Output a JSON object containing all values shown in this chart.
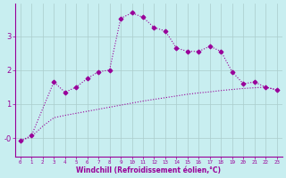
{
  "xlabel": "Windchill (Refroidissement éolien,°C)",
  "bg_color": "#c8eef0",
  "line_color": "#990099",
  "grid_color": "#aacccc",
  "x_ticks": [
    0,
    1,
    2,
    3,
    4,
    5,
    6,
    7,
    8,
    9,
    10,
    11,
    12,
    13,
    14,
    15,
    16,
    17,
    18,
    19,
    20,
    21,
    22,
    23
  ],
  "y_ticks": [
    0,
    1,
    2,
    3
  ],
  "y_tick_labels": [
    "-0",
    "1",
    "2",
    "3"
  ],
  "xlim": [
    -0.5,
    23.5
  ],
  "ylim": [
    -0.55,
    3.95
  ],
  "series1_x": [
    0,
    1,
    3,
    4,
    5,
    6,
    7,
    8,
    9,
    10,
    11,
    12,
    13,
    14,
    15,
    16,
    17,
    18,
    19,
    20,
    21,
    22,
    23
  ],
  "series1_y": [
    -0.08,
    0.08,
    1.65,
    1.35,
    1.5,
    1.75,
    1.95,
    2.0,
    3.52,
    3.68,
    3.55,
    3.25,
    3.15,
    2.65,
    2.55,
    2.55,
    2.7,
    2.55,
    1.95,
    1.6,
    1.65,
    1.5,
    1.42
  ],
  "series2_x": [
    0,
    1,
    2,
    3,
    4,
    5,
    6,
    7,
    8,
    9,
    10,
    11,
    12,
    13,
    14,
    15,
    16,
    17,
    18,
    19,
    20,
    21,
    22,
    23
  ],
  "series2_y": [
    -0.08,
    0.05,
    0.35,
    0.6,
    0.67,
    0.73,
    0.79,
    0.85,
    0.91,
    0.97,
    1.03,
    1.09,
    1.14,
    1.19,
    1.24,
    1.29,
    1.33,
    1.36,
    1.4,
    1.43,
    1.46,
    1.48,
    1.5,
    1.42
  ]
}
